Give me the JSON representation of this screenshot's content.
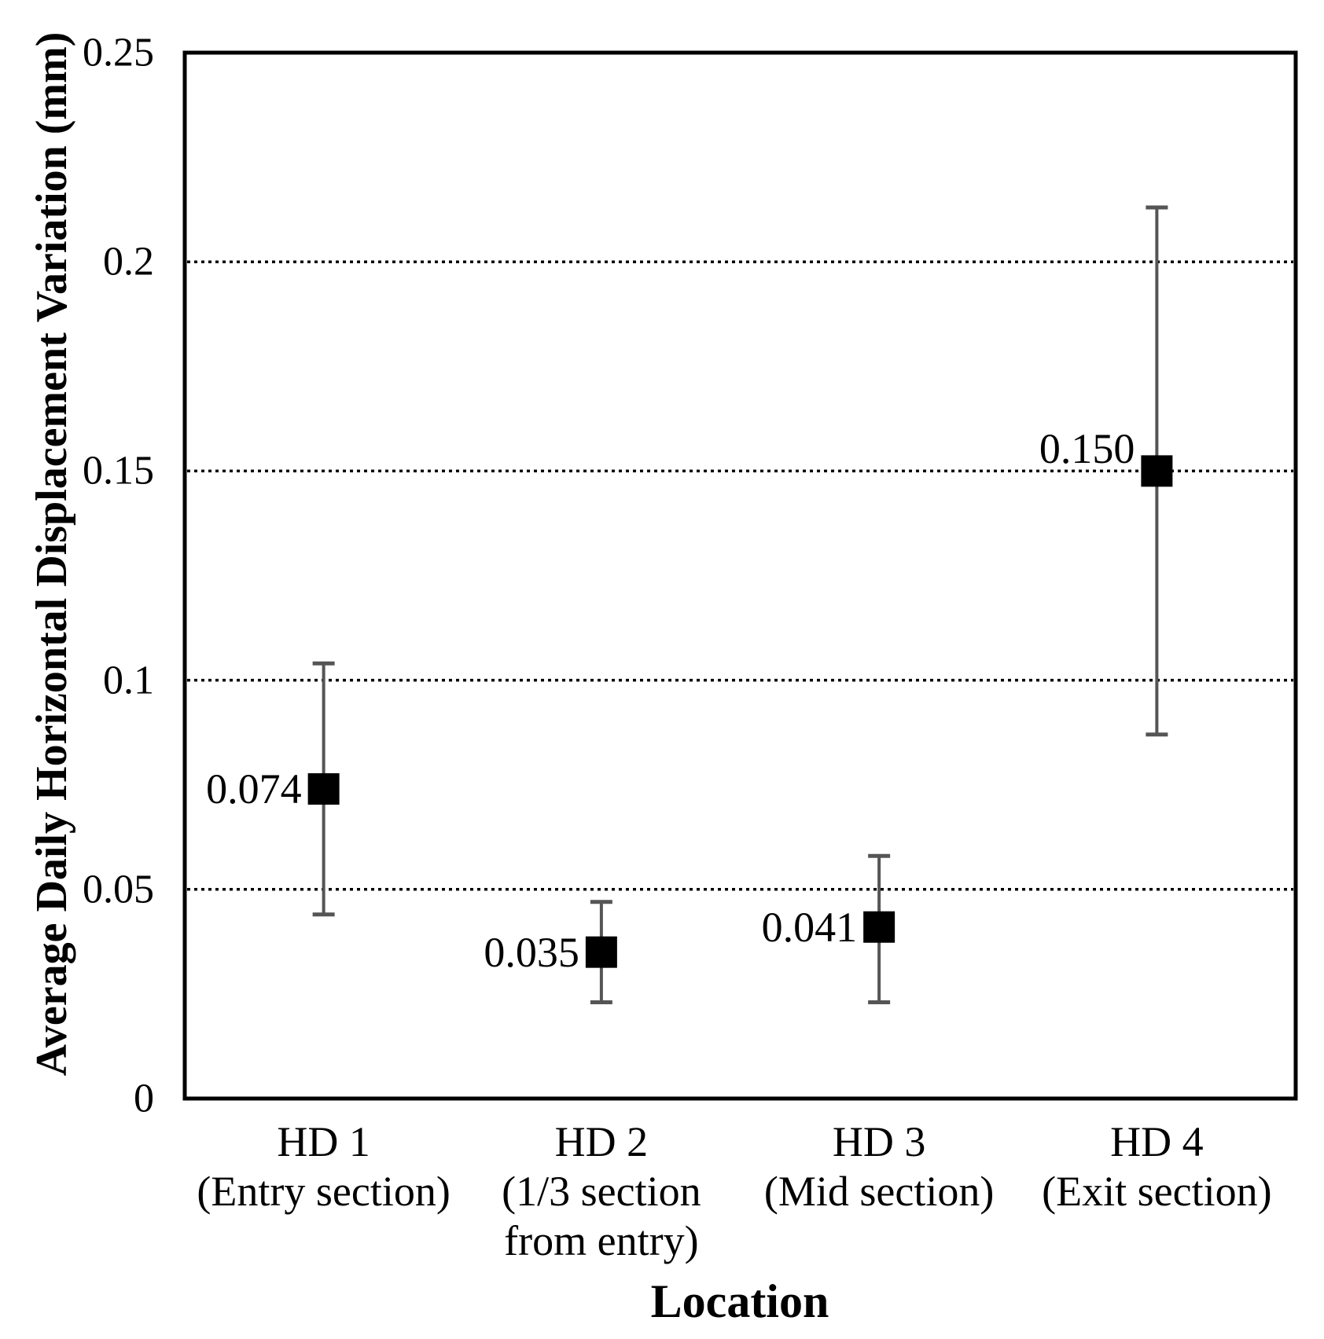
{
  "figure": {
    "background": "#ffffff",
    "text_color": "#000000",
    "border_color": "#000000",
    "gridline_color": "#000000",
    "errorbar_color": "#555555",
    "marker_color": "#000000"
  },
  "chart_data": {
    "type": "scatter",
    "title": "",
    "xlabel": "Location",
    "ylabel": "Average Daily Horizontal Displacement Variation (mm)",
    "ylim": [
      0,
      0.25
    ],
    "grid": "horizontal-dotted",
    "legend": "none",
    "marker": "filled-square",
    "yticks": [
      {
        "value": 0,
        "label": "0"
      },
      {
        "value": 0.05,
        "label": "0.05"
      },
      {
        "value": 0.1,
        "label": "0.1"
      },
      {
        "value": 0.15,
        "label": "0.15"
      },
      {
        "value": 0.2,
        "label": "0.2"
      },
      {
        "value": 0.25,
        "label": "0.25"
      }
    ],
    "gridlines_at": [
      0.05,
      0.1,
      0.15,
      0.2
    ],
    "points": [
      {
        "category_lines": [
          "HD 1",
          "(Entry section)"
        ],
        "value": 0.074,
        "data_label": "0.074",
        "err_low": 0.044,
        "err_high": 0.104,
        "label_dy": 0
      },
      {
        "category_lines": [
          "HD 2",
          "(1/3 section",
          "from entry)"
        ],
        "value": 0.035,
        "data_label": "0.035",
        "err_low": 0.023,
        "err_high": 0.047,
        "label_dy": 0
      },
      {
        "category_lines": [
          "HD 3",
          "(Mid section)"
        ],
        "value": 0.041,
        "data_label": "0.041",
        "err_low": 0.023,
        "err_high": 0.058,
        "label_dy": 0
      },
      {
        "category_lines": [
          "HD 4",
          "(Exit section)"
        ],
        "value": 0.15,
        "data_label": "0.150",
        "err_low": 0.087,
        "err_high": 0.213,
        "label_dy": -28
      }
    ]
  }
}
